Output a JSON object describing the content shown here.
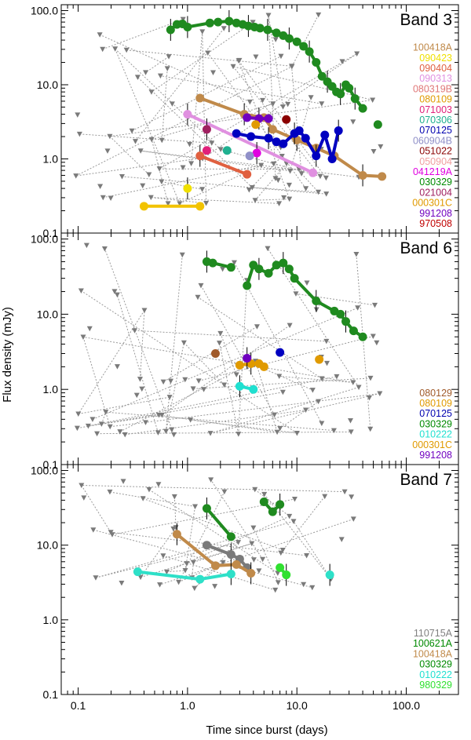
{
  "chart_data": {
    "type": "scatter",
    "title": "",
    "xlabel": "Time since burst (days)",
    "ylabel": "Flux density (mJy)",
    "xscale": "log",
    "yscale": "log",
    "xlim": [
      0.07,
      300
    ],
    "ylim": [
      0.1,
      120
    ],
    "x_ticks": [
      0.1,
      1.0,
      10.0,
      100.0
    ],
    "y_ticks": [
      0.1,
      1.0,
      10.0,
      100.0
    ],
    "x_tick_labels": [
      "0.1",
      "1.0",
      "10.0",
      "100.0"
    ],
    "y_tick_labels": [
      "0.1",
      "1.0",
      "10.0",
      "100.0"
    ],
    "panels": [
      {
        "band": "Band 3",
        "legend": [
          {
            "name": "100418A",
            "color": "#c08a4a"
          },
          {
            "name": "090423",
            "color": "#f0e000"
          },
          {
            "name": "090404",
            "color": "#e06040"
          },
          {
            "name": "090313",
            "color": "#e090e0"
          },
          {
            "name": "080319B",
            "color": "#e07878"
          },
          {
            "name": "080109",
            "color": "#e09a00"
          },
          {
            "name": "071003",
            "color": "#e0207a"
          },
          {
            "name": "070306",
            "color": "#20b090"
          },
          {
            "name": "070125",
            "color": "#0000b0"
          },
          {
            "name": "060904B",
            "color": "#9090c8"
          },
          {
            "name": "051022",
            "color": "#8a0000"
          },
          {
            "name": "050904",
            "color": "#f0a0a0"
          },
          {
            "name": "041219A",
            "color": "#e000e0"
          },
          {
            "name": "030329",
            "color": "#008a00"
          },
          {
            "name": "021004",
            "color": "#a02060"
          },
          {
            "name": "000301C",
            "color": "#e09a00"
          },
          {
            "name": "991208",
            "color": "#7000c0"
          },
          {
            "name": "970508",
            "color": "#c00000"
          }
        ],
        "series": [
          {
            "name": "030329",
            "color": "#1f8a1f",
            "points": [
              [
                0.7,
                55
              ],
              [
                0.8,
                65
              ],
              [
                0.9,
                66
              ],
              [
                1.0,
                60
              ],
              [
                1.6,
                68
              ],
              [
                1.9,
                70
              ],
              [
                2.4,
                72
              ],
              [
                2.8,
                68
              ],
              [
                3.2,
                65
              ],
              [
                3.6,
                62
              ],
              [
                4.1,
                60
              ],
              [
                4.6,
                58
              ],
              [
                5.4,
                55
              ],
              [
                6.5,
                50
              ],
              [
                7.5,
                46
              ],
              [
                8.5,
                42
              ],
              [
                10.0,
                38
              ],
              [
                11.5,
                33
              ],
              [
                13.0,
                28
              ],
              [
                15.0,
                20
              ],
              [
                17.0,
                13
              ],
              [
                19.0,
                11
              ],
              [
                21.0,
                9.5
              ],
              [
                23.0,
                8.0
              ],
              [
                25.0,
                7.5
              ],
              [
                28.0,
                10.0
              ],
              [
                30.0,
                9.0
              ],
              [
                34.0,
                6.5
              ],
              [
                40.0,
                4.8
              ]
            ]
          },
          {
            "name": "030329-late",
            "color": "#1f8a1f",
            "points": [
              [
                55.0,
                2.9
              ]
            ]
          },
          {
            "name": "100418A",
            "color": "#c08a4a",
            "points": [
              [
                1.3,
                6.6
              ],
              [
                3.3,
                4.0
              ],
              [
                5.0,
                3.6
              ],
              [
                6.0,
                2.5
              ],
              [
                10.0,
                1.8
              ],
              [
                15.0,
                1.4
              ],
              [
                22.0,
                1.1
              ],
              [
                40.0,
                0.6
              ],
              [
                60.0,
                0.58
              ]
            ]
          },
          {
            "name": "090313",
            "color": "#e090e0",
            "points": [
              [
                1.0,
                4.0
              ],
              [
                14.0,
                0.65
              ]
            ]
          },
          {
            "name": "070125",
            "color": "#0000c0",
            "points": [
              [
                2.8,
                2.2
              ],
              [
                3.8,
                2.0
              ],
              [
                5.5,
                1.9
              ],
              [
                6.5,
                1.7
              ],
              [
                7.5,
                1.6
              ],
              [
                9.5,
                2.2
              ],
              [
                10.5,
                2.4
              ],
              [
                12.0,
                1.9
              ],
              [
                15.0,
                1.1
              ],
              [
                18.0,
                2.1
              ],
              [
                21.0,
                1.0
              ],
              [
                24.0,
                2.4
              ]
            ]
          },
          {
            "name": "991208",
            "color": "#7000c0",
            "points": [
              [
                3.5,
                3.6
              ],
              [
                4.5,
                3.5
              ],
              [
                5.5,
                3.5
              ]
            ]
          },
          {
            "name": "090404",
            "color": "#e06040",
            "points": [
              [
                1.3,
                1.1
              ],
              [
                3.5,
                0.62
              ]
            ]
          },
          {
            "name": "000301C",
            "color": "#f2c300",
            "points": [
              [
                0.4,
                0.23
              ],
              [
                1.3,
                0.23
              ]
            ]
          },
          {
            "name": "051022",
            "color": "#8a0000",
            "points": [
              [
                8.0,
                3.4
              ]
            ]
          },
          {
            "name": "021004",
            "color": "#a02060",
            "points": [
              [
                1.5,
                2.5
              ]
            ]
          },
          {
            "name": "071003",
            "color": "#e0207a",
            "points": [
              [
                1.5,
                1.3
              ]
            ]
          },
          {
            "name": "070306",
            "color": "#20b090",
            "points": [
              [
                2.3,
                1.3
              ]
            ]
          },
          {
            "name": "041219A",
            "color": "#e000e0",
            "points": [
              [
                4.3,
                1.2
              ]
            ]
          },
          {
            "name": "060904B",
            "color": "#9090c8",
            "points": [
              [
                3.7,
                1.1
              ]
            ]
          },
          {
            "name": "080109",
            "color": "#e09a00",
            "points": [
              [
                4.2,
                2.9
              ]
            ]
          },
          {
            "name": "090423",
            "color": "#f0e000",
            "points": [
              [
                1.0,
                0.4
              ]
            ]
          }
        ]
      },
      {
        "band": "Band 6",
        "legend": [
          {
            "name": "080129",
            "color": "#a05a2a"
          },
          {
            "name": "080109",
            "color": "#e09a00"
          },
          {
            "name": "070125",
            "color": "#0000b0"
          },
          {
            "name": "030329",
            "color": "#008a00"
          },
          {
            "name": "010222",
            "color": "#20e0d0"
          },
          {
            "name": "000301C",
            "color": "#e09a00"
          },
          {
            "name": "991208",
            "color": "#7000c0"
          }
        ],
        "series": [
          {
            "name": "030329-early",
            "color": "#1f8a1f",
            "points": [
              [
                1.5,
                50
              ],
              [
                1.7,
                48
              ],
              [
                2.5,
                42
              ]
            ]
          },
          {
            "name": "030329",
            "color": "#1f8a1f",
            "points": [
              [
                3.5,
                24
              ],
              [
                4.0,
                45
              ],
              [
                4.5,
                40
              ],
              [
                5.5,
                35
              ],
              [
                6.5,
                45
              ],
              [
                7.5,
                48
              ],
              [
                8.5,
                40
              ],
              [
                9.5,
                30
              ],
              [
                15.0,
                15
              ],
              [
                22.0,
                11
              ],
              [
                25.0,
                10
              ],
              [
                28.0,
                8
              ],
              [
                33.0,
                6
              ],
              [
                40.0,
                5
              ]
            ]
          },
          {
            "name": "000301C",
            "color": "#e09a00",
            "points": [
              [
                3.0,
                2.1
              ],
              [
                3.8,
                2.2
              ],
              [
                4.5,
                2.2
              ],
              [
                5.0,
                2.0
              ]
            ]
          },
          {
            "name": "010222",
            "color": "#20e0d0",
            "points": [
              [
                3.0,
                1.1
              ],
              [
                4.0,
                1.0
              ]
            ]
          },
          {
            "name": "080129",
            "color": "#a05a2a",
            "points": [
              [
                1.8,
                3.0
              ]
            ]
          },
          {
            "name": "070125",
            "color": "#0000c0",
            "points": [
              [
                7.0,
                3.1
              ]
            ]
          },
          {
            "name": "991208",
            "color": "#7000c0",
            "points": [
              [
                3.5,
                2.6
              ]
            ]
          },
          {
            "name": "080109",
            "color": "#e09a00",
            "points": [
              [
                16.0,
                2.5
              ]
            ]
          }
        ]
      },
      {
        "band": "Band 7",
        "legend": [
          {
            "name": "110715A",
            "color": "#808080"
          },
          {
            "name": "100621A",
            "color": "#008a00"
          },
          {
            "name": "100418A",
            "color": "#c08a4a"
          },
          {
            "name": "030329",
            "color": "#008a00"
          },
          {
            "name": "010222",
            "color": "#20e0d0"
          },
          {
            "name": "980329",
            "color": "#30e030"
          }
        ],
        "series": [
          {
            "name": "100621A",
            "color": "#1f8a1f",
            "points": [
              [
                1.5,
                31
              ],
              [
                2.5,
                13
              ]
            ]
          },
          {
            "name": "030329",
            "color": "#1f8a1f",
            "points": [
              [
                5.0,
                38
              ],
              [
                6.0,
                28
              ],
              [
                7.0,
                35
              ]
            ]
          },
          {
            "name": "110715A",
            "color": "#7a7a7a",
            "points": [
              [
                1.5,
                10
              ],
              [
                2.5,
                7.5
              ],
              [
                3.0,
                6.5
              ],
              [
                3.5,
                5.0
              ]
            ]
          },
          {
            "name": "100418A",
            "color": "#c08a4a",
            "points": [
              [
                0.8,
                14
              ],
              [
                1.8,
                5.3
              ],
              [
                2.8,
                5.5
              ],
              [
                3.8,
                4.2
              ]
            ]
          },
          {
            "name": "010222",
            "color": "#2ee0c8",
            "points": [
              [
                0.35,
                4.4
              ],
              [
                1.3,
                3.5
              ],
              [
                2.5,
                4.1
              ]
            ]
          },
          {
            "name": "980329",
            "color": "#30e030",
            "points": [
              [
                7.0,
                5.0
              ],
              [
                8.0,
                4.0
              ]
            ]
          },
          {
            "name": "010222-late",
            "color": "#2ee0c8",
            "points": [
              [
                20.0,
                4.0
              ]
            ]
          }
        ]
      }
    ]
  }
}
